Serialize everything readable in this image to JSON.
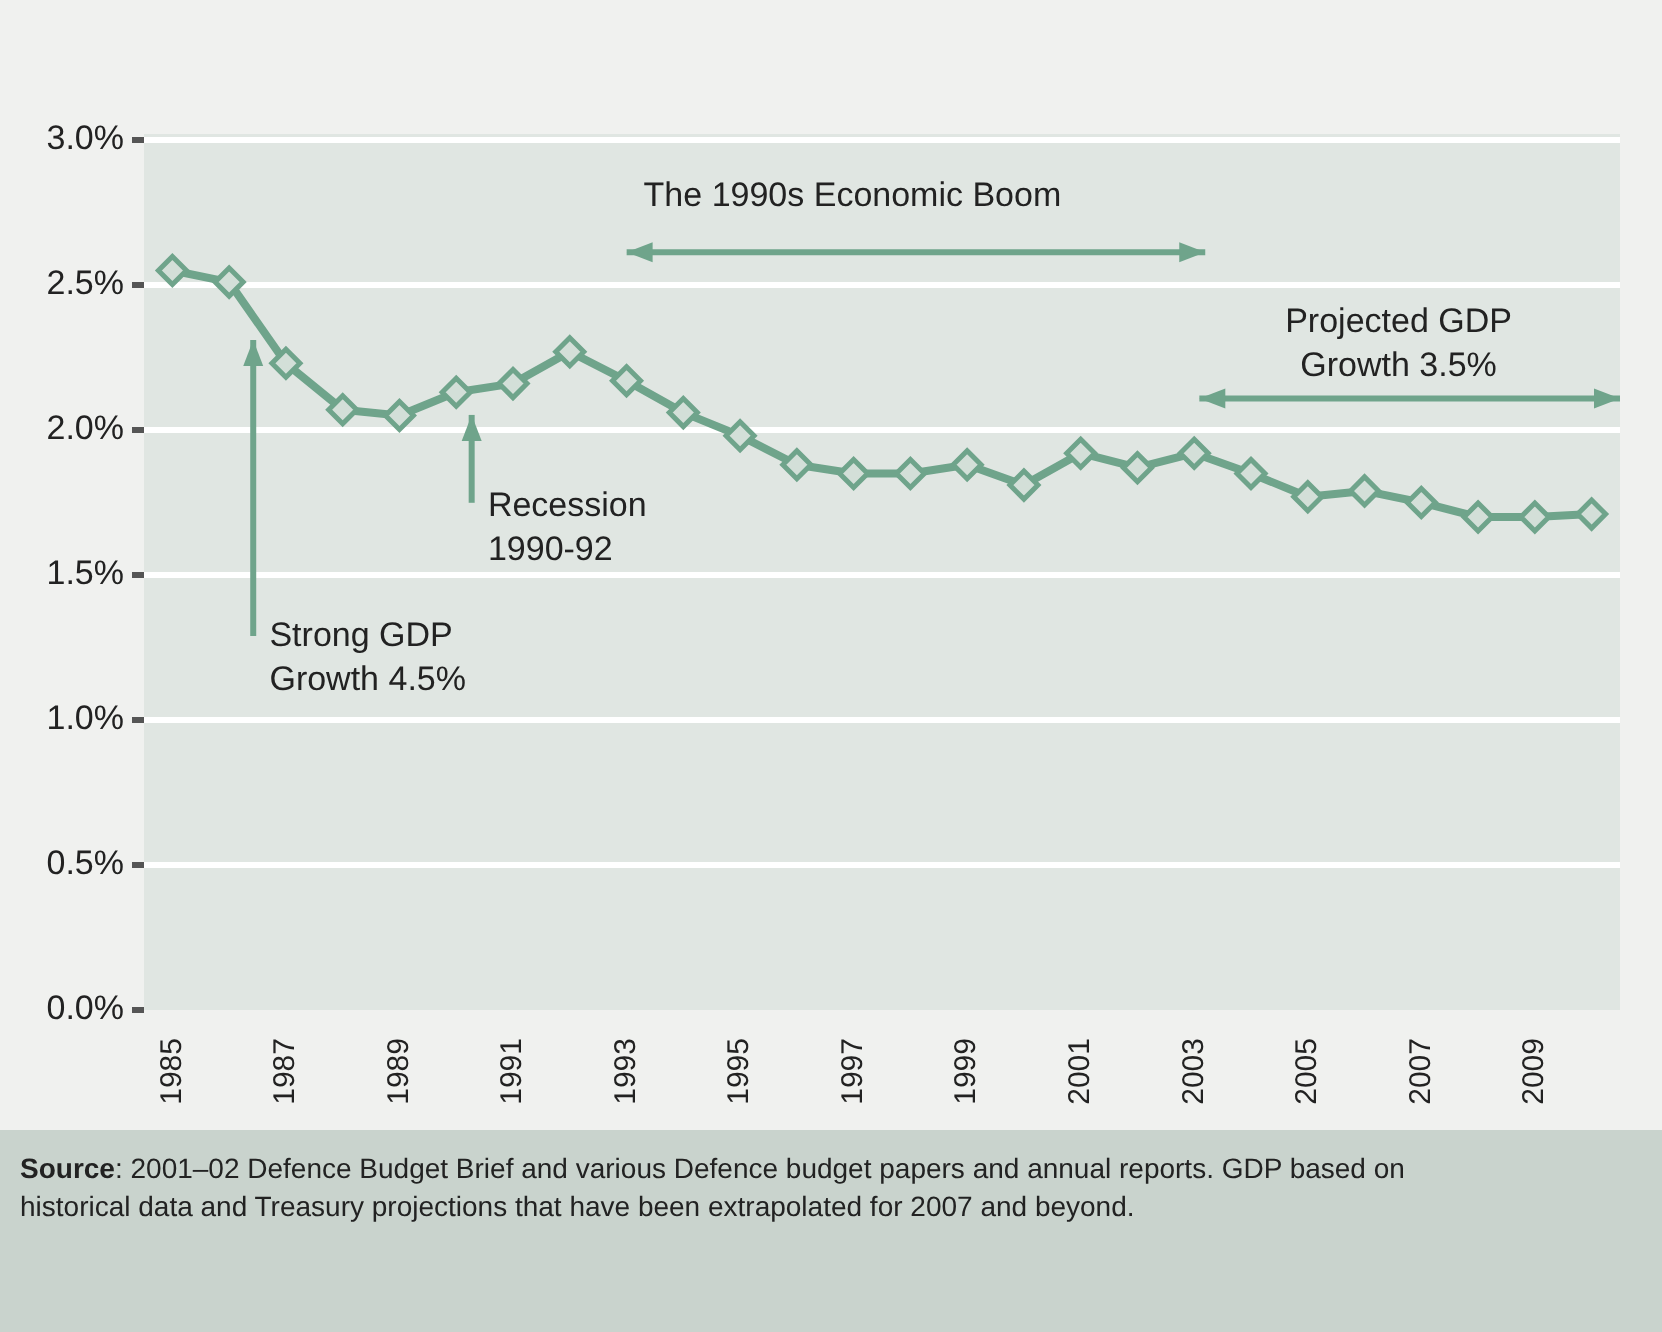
{
  "chart_data": {
    "type": "line",
    "categories": [
      "1985",
      null,
      "1987",
      null,
      "1989",
      null,
      "1991",
      null,
      "1993",
      null,
      "1995",
      null,
      "1997",
      null,
      "1999",
      null,
      "2001",
      null,
      "2003",
      null,
      "2005",
      null,
      "2007",
      null,
      "2009",
      null
    ],
    "series": [
      {
        "color": "#6fa48b",
        "values": [
          2.55,
          2.51,
          2.23,
          2.07,
          2.05,
          2.13,
          2.16,
          2.27,
          2.17,
          2.06,
          1.98,
          1.88,
          1.85,
          1.85,
          1.88,
          1.81,
          1.92,
          1.87,
          1.92,
          1.85,
          1.77,
          1.79,
          1.75,
          1.7,
          1.7,
          1.71
        ]
      }
    ],
    "ylim": [
      0,
      3
    ],
    "yticks": [
      {
        "value": 0,
        "label": "0.0%"
      },
      {
        "value": 0.5,
        "label": "0.5%"
      },
      {
        "value": 1,
        "label": "1.0%"
      },
      {
        "value": 1.5,
        "label": "1.5%"
      },
      {
        "value": 2,
        "label": "2.0%"
      },
      {
        "value": 2.5,
        "label": "2.5%"
      },
      {
        "value": 3,
        "label": "3.0%"
      }
    ],
    "grid": "y",
    "legend": false,
    "marker": "diamond",
    "line_style": "solid",
    "annotations": [
      "The 1990s Economic Boom",
      "Projected GDP Growth 3.5%",
      "Strong GDP Growth 4.5%",
      "Recession 1990-92",
      "Source: 2001–02 Defence Budget Brief and various Defence budget papers and annual reports. GDP based on historical data and Treasury projections that have been extrapolated for 2007 and beyond."
    ]
  }
}
